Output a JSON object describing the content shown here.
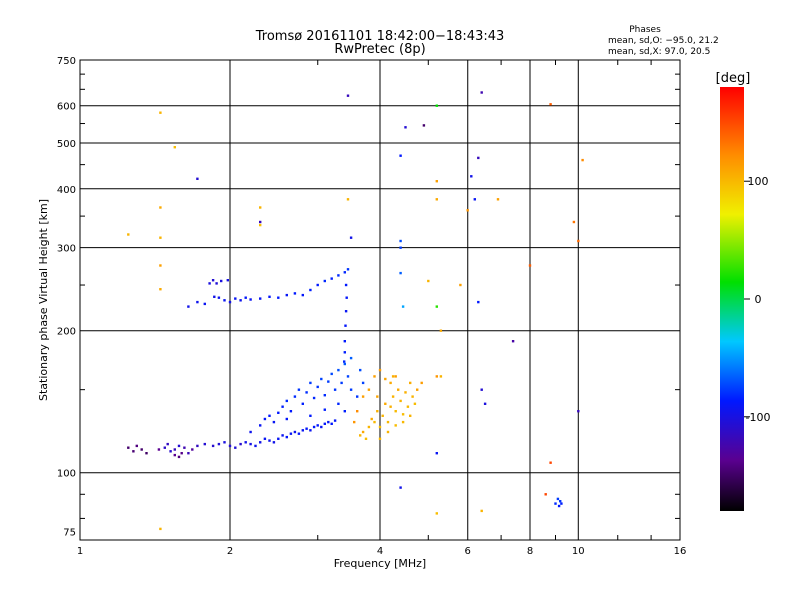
{
  "chart_data": {
    "type": "scatter",
    "title": "Tromsø 20161101 18:42:00−18:43:43",
    "subtitle": "RwPretec (8p)",
    "xlabel": "Frequency [MHz]",
    "ylabel": "Stationary phase Virtual Height [km]",
    "x_scale": "log2",
    "y_scale": "log",
    "xlim": [
      1,
      16
    ],
    "ylim": [
      72,
      750
    ],
    "x_ticks": [
      1,
      2,
      4,
      6,
      8,
      10,
      16
    ],
    "y_ticks": [
      75,
      100,
      200,
      300,
      400,
      500,
      600,
      750
    ],
    "grid": true,
    "stats": {
      "heading": "Phases",
      "line1": "mean, sd,O:  −95.0, 21.2",
      "line2": "mean, sd,X:  97.0, 20.5"
    },
    "colorbar": {
      "label": "[deg]",
      "ticks": [
        100,
        0,
        -100
      ],
      "range": [
        -180,
        180
      ]
    },
    "color_scale": "rainbow, -180 (black/purple) to 180 (red)",
    "series": [
      {
        "points": [
          [
            1.48,
            113,
            -115
          ],
          [
            1.5,
            115,
            -118
          ],
          [
            1.52,
            111,
            -112
          ],
          [
            1.55,
            112,
            -120
          ],
          [
            1.58,
            114,
            -110
          ],
          [
            1.62,
            113,
            -125
          ],
          [
            1.65,
            110,
            -122
          ],
          [
            1.72,
            114,
            -118
          ],
          [
            1.78,
            115,
            -110
          ],
          [
            1.85,
            114,
            -112
          ],
          [
            1.9,
            115,
            -108
          ],
          [
            1.95,
            116,
            -105
          ],
          [
            2.0,
            114,
            -110
          ],
          [
            2.05,
            113,
            -108
          ],
          [
            2.1,
            115,
            -112
          ],
          [
            2.15,
            116,
            -100
          ],
          [
            2.2,
            115,
            -102
          ],
          [
            2.25,
            114,
            -98
          ],
          [
            2.3,
            116,
            -100
          ],
          [
            2.35,
            118,
            -95
          ],
          [
            2.4,
            117,
            -98
          ],
          [
            2.45,
            116,
            -100
          ],
          [
            2.5,
            118,
            -95
          ],
          [
            2.55,
            120,
            -96
          ],
          [
            2.6,
            119,
            -92
          ],
          [
            2.65,
            121,
            -95
          ],
          [
            2.7,
            122,
            -98
          ],
          [
            2.75,
            121,
            -92
          ],
          [
            2.8,
            123,
            -95
          ],
          [
            2.85,
            124,
            -92
          ],
          [
            2.9,
            123,
            -96
          ],
          [
            2.95,
            125,
            -90
          ],
          [
            3.0,
            126,
            -92
          ],
          [
            3.05,
            125,
            -95
          ],
          [
            3.1,
            127,
            -92
          ],
          [
            3.15,
            128,
            -95
          ],
          [
            3.2,
            127,
            -90
          ],
          [
            3.25,
            129,
            -92
          ],
          [
            2.2,
            122,
            -98
          ],
          [
            2.3,
            126,
            -95
          ],
          [
            2.35,
            130,
            -92
          ],
          [
            2.45,
            128,
            -95
          ],
          [
            2.5,
            134,
            -90
          ],
          [
            2.55,
            138,
            -88
          ],
          [
            2.6,
            142,
            -85
          ],
          [
            2.65,
            135,
            -90
          ],
          [
            2.7,
            145,
            -85
          ],
          [
            2.75,
            150,
            -82
          ],
          [
            2.8,
            140,
            -88
          ],
          [
            2.85,
            148,
            -84
          ],
          [
            2.9,
            155,
            -80
          ],
          [
            2.95,
            144,
            -86
          ],
          [
            3.0,
            152,
            -82
          ],
          [
            3.05,
            158,
            -78
          ],
          [
            3.1,
            146,
            -85
          ],
          [
            3.15,
            156,
            -80
          ],
          [
            3.2,
            162,
            -76
          ],
          [
            3.25,
            150,
            -82
          ],
          [
            3.3,
            165,
            -74
          ],
          [
            3.35,
            155,
            -80
          ],
          [
            3.4,
            170,
            -72
          ],
          [
            3.45,
            160,
            -78
          ],
          [
            3.5,
            175,
            -70
          ],
          [
            3.5,
            150,
            -80
          ],
          [
            3.6,
            145,
            -82
          ],
          [
            3.65,
            165,
            -75
          ],
          [
            3.7,
            155,
            -78
          ],
          [
            3.3,
            140,
            -86
          ],
          [
            3.4,
            135,
            -88
          ],
          [
            2.4,
            132,
            -92
          ],
          [
            2.6,
            130,
            -92
          ],
          [
            2.9,
            132,
            -90
          ],
          [
            3.1,
            136,
            -88
          ],
          [
            1.25,
            113,
            -150
          ],
          [
            1.28,
            111,
            -148
          ],
          [
            1.3,
            114,
            -145
          ],
          [
            1.33,
            112,
            -150
          ],
          [
            1.36,
            110,
            -152
          ],
          [
            1.55,
            109,
            -140
          ],
          [
            1.58,
            108,
            -145
          ],
          [
            1.6,
            110,
            -142
          ],
          [
            1.68,
            112,
            -135
          ],
          [
            1.44,
            112,
            -140
          ],
          [
            1.82,
            252,
            -105
          ],
          [
            1.85,
            256,
            -110
          ],
          [
            1.88,
            252,
            -108
          ],
          [
            1.92,
            255,
            -105
          ],
          [
            1.98,
            256,
            -102
          ],
          [
            1.86,
            236,
            -100
          ],
          [
            1.9,
            235,
            -98
          ],
          [
            1.95,
            232,
            -96
          ],
          [
            2.0,
            230,
            -100
          ],
          [
            2.05,
            234,
            -95
          ],
          [
            2.1,
            232,
            -98
          ],
          [
            2.15,
            235,
            -92
          ],
          [
            2.2,
            233,
            -96
          ],
          [
            2.3,
            234,
            -95
          ],
          [
            2.4,
            236,
            -92
          ],
          [
            2.5,
            235,
            -90
          ],
          [
            2.6,
            238,
            -94
          ],
          [
            2.7,
            240,
            -90
          ],
          [
            2.8,
            238,
            -92
          ],
          [
            2.9,
            244,
            -88
          ],
          [
            3.0,
            250,
            -90
          ],
          [
            3.1,
            255,
            -86
          ],
          [
            3.2,
            258,
            -88
          ],
          [
            3.3,
            262,
            -85
          ],
          [
            3.4,
            266,
            -86
          ],
          [
            3.45,
            270,
            -82
          ],
          [
            1.65,
            225,
            -100
          ],
          [
            1.72,
            230,
            -98
          ],
          [
            1.78,
            228,
            -96
          ],
          [
            3.42,
            250,
            -90
          ],
          [
            3.43,
            235,
            -92
          ],
          [
            3.42,
            220,
            -95
          ],
          [
            3.41,
            205,
            -92
          ],
          [
            3.4,
            190,
            -90
          ],
          [
            3.4,
            180,
            -88
          ],
          [
            3.39,
            172,
            -86
          ],
          [
            9.0,
            86,
            -85
          ],
          [
            9.1,
            88,
            -80
          ],
          [
            9.15,
            85,
            -90
          ],
          [
            9.2,
            87,
            -82
          ],
          [
            9.25,
            86,
            -88
          ],
          [
            4.4,
            93,
            -100
          ],
          [
            5.2,
            110,
            -95
          ],
          [
            6.4,
            150,
            -110
          ],
          [
            6.5,
            140,
            -105
          ],
          [
            10.0,
            135,
            -120
          ],
          [
            7.4,
            190,
            -130
          ],
          [
            6.3,
            230,
            -90
          ],
          [
            6.3,
            465,
            -120
          ],
          [
            6.4,
            640,
            -125
          ],
          [
            6.2,
            380,
            -95
          ],
          [
            4.4,
            310,
            -75
          ],
          [
            4.4,
            300,
            -80
          ],
          [
            4.45,
            225,
            -50
          ],
          [
            4.4,
            265,
            -70
          ],
          [
            5.2,
            225,
            20
          ],
          [
            5.2,
            600,
            10
          ],
          [
            4.5,
            540,
            -110
          ],
          [
            4.9,
            545,
            -150
          ],
          [
            4.4,
            470,
            -90
          ],
          [
            3.45,
            630,
            -120
          ],
          [
            1.72,
            420,
            -110
          ],
          [
            2.3,
            340,
            -120
          ],
          [
            3.5,
            315,
            -100
          ],
          [
            6.1,
            425,
            -100
          ]
        ]
      },
      {
        "points": [
          [
            3.65,
            120,
            100
          ],
          [
            3.7,
            122,
            105
          ],
          [
            3.75,
            118,
            95
          ],
          [
            3.8,
            125,
            100
          ],
          [
            3.85,
            130,
            105
          ],
          [
            3.9,
            128,
            98
          ],
          [
            3.95,
            135,
            102
          ],
          [
            4.0,
            125,
            95
          ],
          [
            4.05,
            132,
            100
          ],
          [
            4.1,
            140,
            105
          ],
          [
            4.15,
            128,
            98
          ],
          [
            4.2,
            138,
            102
          ],
          [
            4.25,
            145,
            100
          ],
          [
            4.3,
            135,
            97
          ],
          [
            4.35,
            150,
            105
          ],
          [
            4.4,
            142,
            100
          ],
          [
            4.45,
            133,
            96
          ],
          [
            4.5,
            148,
            102
          ],
          [
            4.55,
            138,
            98
          ],
          [
            4.6,
            155,
            104
          ],
          [
            4.65,
            145,
            100
          ],
          [
            4.7,
            140,
            96
          ],
          [
            3.7,
            145,
            110
          ],
          [
            3.8,
            150,
            108
          ],
          [
            3.9,
            160,
            110
          ],
          [
            4.0,
            165,
            112
          ],
          [
            4.1,
            158,
            108
          ],
          [
            4.2,
            155,
            105
          ],
          [
            4.0,
            118,
            98
          ],
          [
            4.15,
            122,
            100
          ],
          [
            4.3,
            126,
            96
          ],
          [
            4.45,
            128,
            98
          ],
          [
            4.6,
            132,
            100
          ],
          [
            4.75,
            150,
            110
          ],
          [
            4.85,
            155,
            112
          ],
          [
            5.2,
            160,
            115
          ],
          [
            3.6,
            135,
            120
          ],
          [
            3.55,
            128,
            115
          ],
          [
            3.95,
            145,
            108
          ],
          [
            4.25,
            160,
            102
          ],
          [
            1.45,
            580,
            100
          ],
          [
            1.55,
            490,
            95
          ],
          [
            1.45,
            365,
            105
          ],
          [
            1.45,
            315,
            100
          ],
          [
            1.45,
            275,
            110
          ],
          [
            1.45,
            245,
            105
          ],
          [
            1.25,
            320,
            100
          ],
          [
            2.3,
            365,
            100
          ],
          [
            2.3,
            335,
            95
          ],
          [
            1.45,
            76,
            100
          ],
          [
            5.2,
            415,
            110
          ],
          [
            5.2,
            380,
            105
          ],
          [
            5.0,
            255,
            100
          ],
          [
            5.3,
            200,
            105
          ],
          [
            5.3,
            160,
            100
          ],
          [
            4.3,
            160,
            110
          ],
          [
            3.45,
            380,
            100
          ],
          [
            6.9,
            380,
            110
          ],
          [
            6.4,
            83,
            100
          ],
          [
            5.2,
            82,
            95
          ],
          [
            8.8,
            604,
            140
          ],
          [
            8.8,
            105,
            150
          ],
          [
            8.6,
            90,
            150
          ],
          [
            10.2,
            460,
            120
          ],
          [
            9.8,
            340,
            130
          ],
          [
            10.0,
            310,
            135
          ],
          [
            8.0,
            275,
            140
          ],
          [
            6.0,
            360,
            115
          ],
          [
            5.8,
            250,
            110
          ]
        ]
      }
    ]
  }
}
